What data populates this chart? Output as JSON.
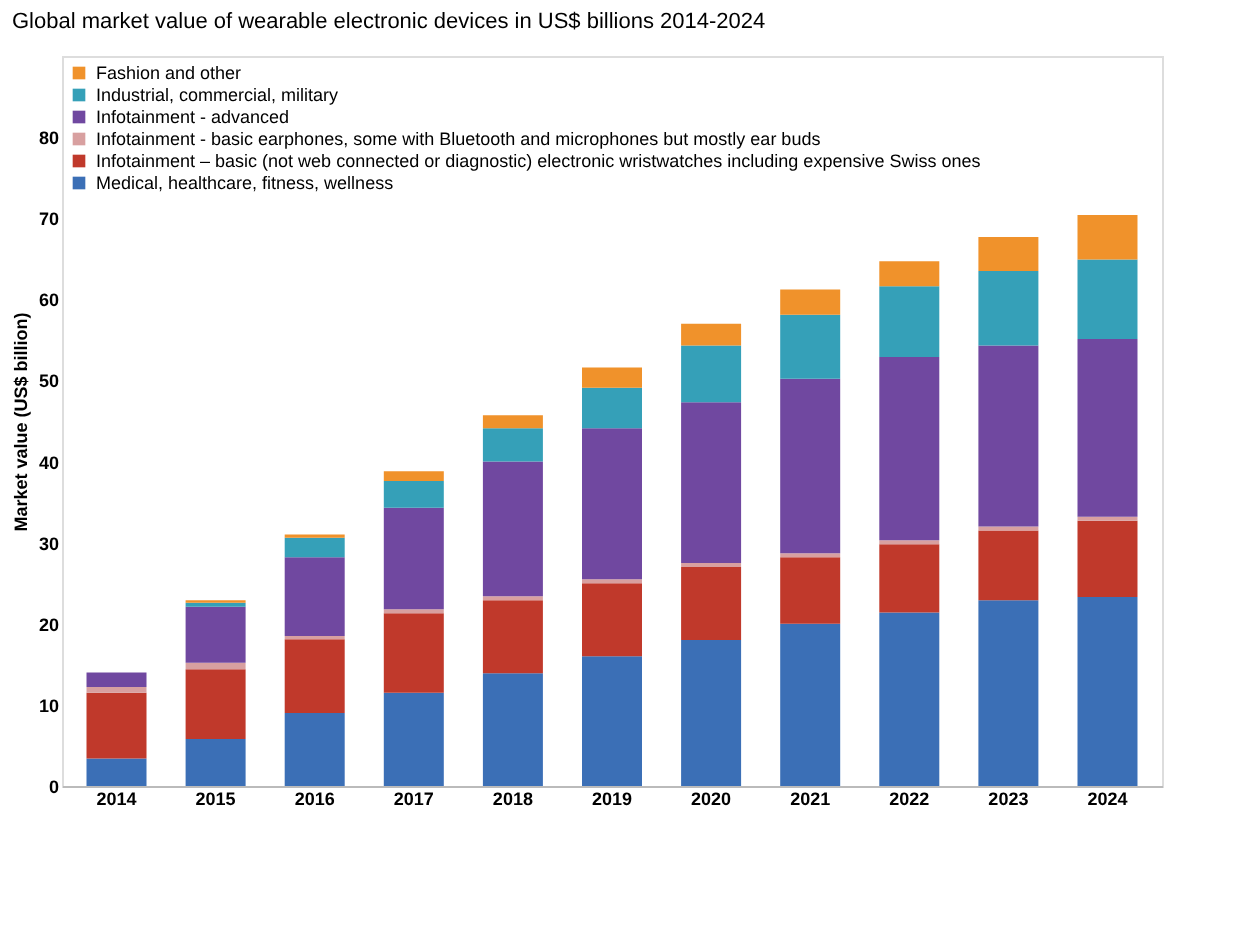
{
  "chart_data": {
    "type": "bar",
    "stacked": true,
    "title": "Global market value of wearable electronic devices in US$ billions 2014-2024",
    "ylabel": "Market value (US$ billion)",
    "categories": [
      "2014",
      "2015",
      "2016",
      "2017",
      "2018",
      "2019",
      "2020",
      "2021",
      "2022",
      "2023",
      "2024"
    ],
    "series": [
      {
        "name": "Medical, healthcare, fitness, wellness",
        "color": "#3b6fb6",
        "values": [
          3.4,
          5.8,
          9,
          11.5,
          13.9,
          16,
          18,
          20,
          21.4,
          22.9,
          23.3
        ]
      },
      {
        "name": "Infotainment – basic (not web connected or diagnostic) electronic wristwatches including expensive Swiss ones",
        "color": "#c0392b",
        "values": [
          8.1,
          8.6,
          9.1,
          9.8,
          9.0,
          9.0,
          9.0,
          8.2,
          8.4,
          8.6,
          9.4
        ]
      },
      {
        "name": "Infotainment - basic earphones, some with Bluetooth and microphones but mostly ear buds",
        "color": "#d8a0a0",
        "values": [
          0.7,
          0.8,
          0.4,
          0.5,
          0.5,
          0.5,
          0.5,
          0.5,
          0.5,
          0.5,
          0.5
        ]
      },
      {
        "name": "Infotainment - advanced",
        "color": "#7048a0",
        "values": [
          1.8,
          6.9,
          9.7,
          12.5,
          16.6,
          18.6,
          19.8,
          21.5,
          22.6,
          22.3,
          21.9
        ]
      },
      {
        "name": "Industrial, commercial, military",
        "color": "#35a0b8",
        "values": [
          0,
          0.5,
          2.4,
          3.3,
          4.1,
          5.0,
          7.0,
          7.9,
          8.7,
          9.2,
          9.8
        ]
      },
      {
        "name": "Fashion and other",
        "color": "#f0922b",
        "values": [
          0,
          0.3,
          0.4,
          1.2,
          1.6,
          2.5,
          2.7,
          3.1,
          3.1,
          4.2,
          5.5
        ]
      }
    ],
    "ylim": [
      0,
      90
    ],
    "yticks": [
      0,
      10,
      20,
      30,
      40,
      50,
      60,
      70,
      80
    ],
    "grid": false,
    "legend": "top left"
  }
}
